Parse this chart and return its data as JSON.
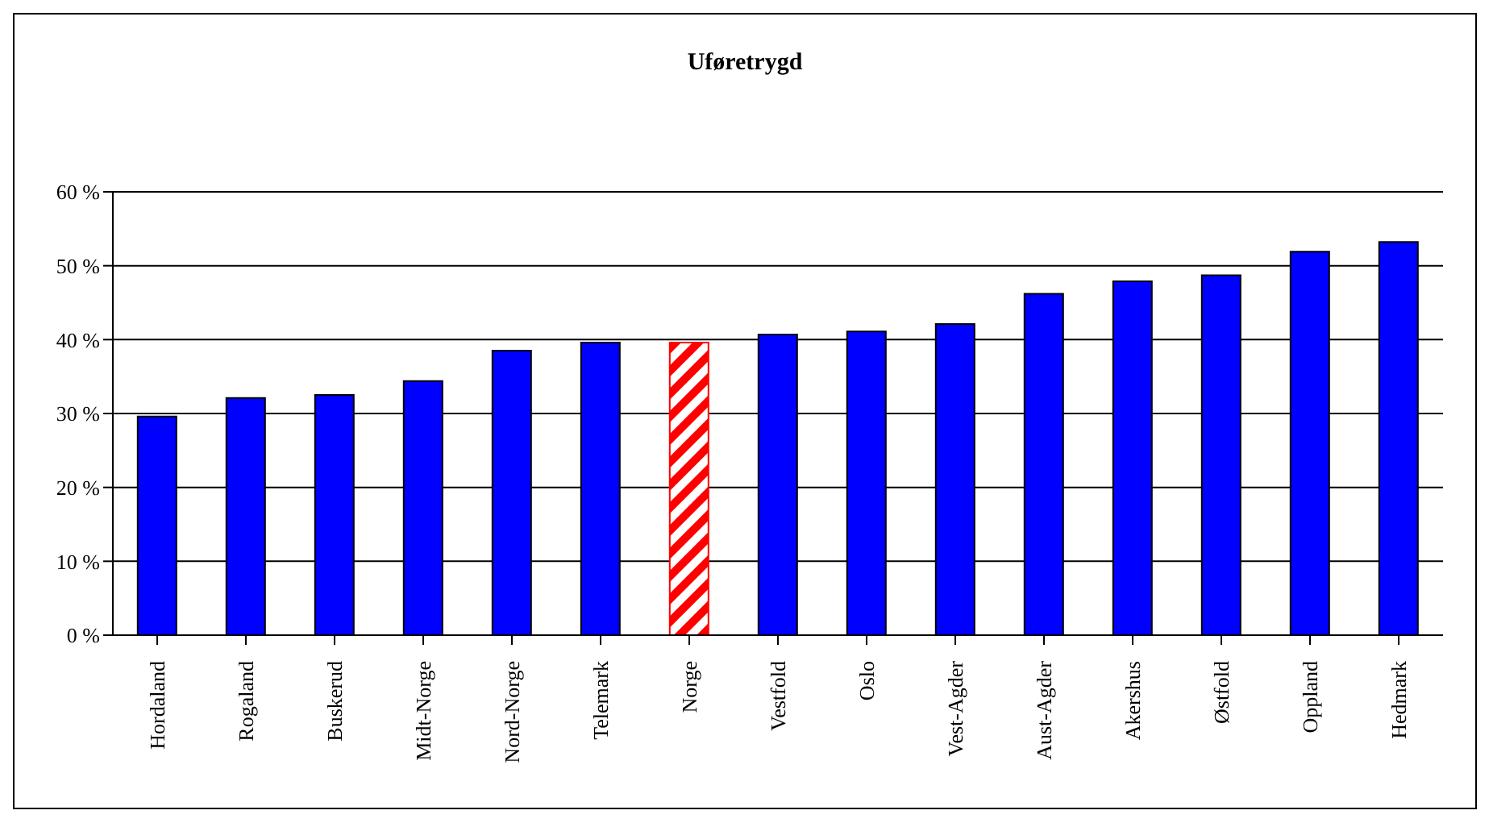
{
  "chart_data": {
    "type": "bar",
    "title": "Uføretrygd",
    "categories": [
      "Hordaland",
      "Rogaland",
      "Buskerud",
      "Midt-Norge",
      "Nord-Norge",
      "Telemark",
      "Norge",
      "Vestfold",
      "Oslo",
      "Vest-Agder",
      "Aust-Agder",
      "Akershus",
      "Østfold",
      "Oppland",
      "Hedmark"
    ],
    "values": [
      29.6,
      32.1,
      32.5,
      34.4,
      38.5,
      39.6,
      39.6,
      40.7,
      41.1,
      42.1,
      46.2,
      47.9,
      48.7,
      51.9,
      53.2
    ],
    "colors": [
      "#0000ff",
      "#0000ff",
      "#0000ff",
      "#0000ff",
      "#0000ff",
      "#0000ff",
      "#ff0000",
      "#0000ff",
      "#0000ff",
      "#0000ff",
      "#0000ff",
      "#0000ff",
      "#0000ff",
      "#0000ff",
      "#0000ff"
    ],
    "ylim": [
      0,
      60
    ],
    "yticks": [
      {
        "value": 0,
        "label": "0 %"
      },
      {
        "value": 10,
        "label": "10 %"
      },
      {
        "value": 20,
        "label": "20 %"
      },
      {
        "value": 30,
        "label": "30 %"
      },
      {
        "value": 40,
        "label": "40 %"
      },
      {
        "value": 50,
        "label": "50 %"
      },
      {
        "value": 60,
        "label": "60 %"
      }
    ],
    "grid": "y"
  }
}
